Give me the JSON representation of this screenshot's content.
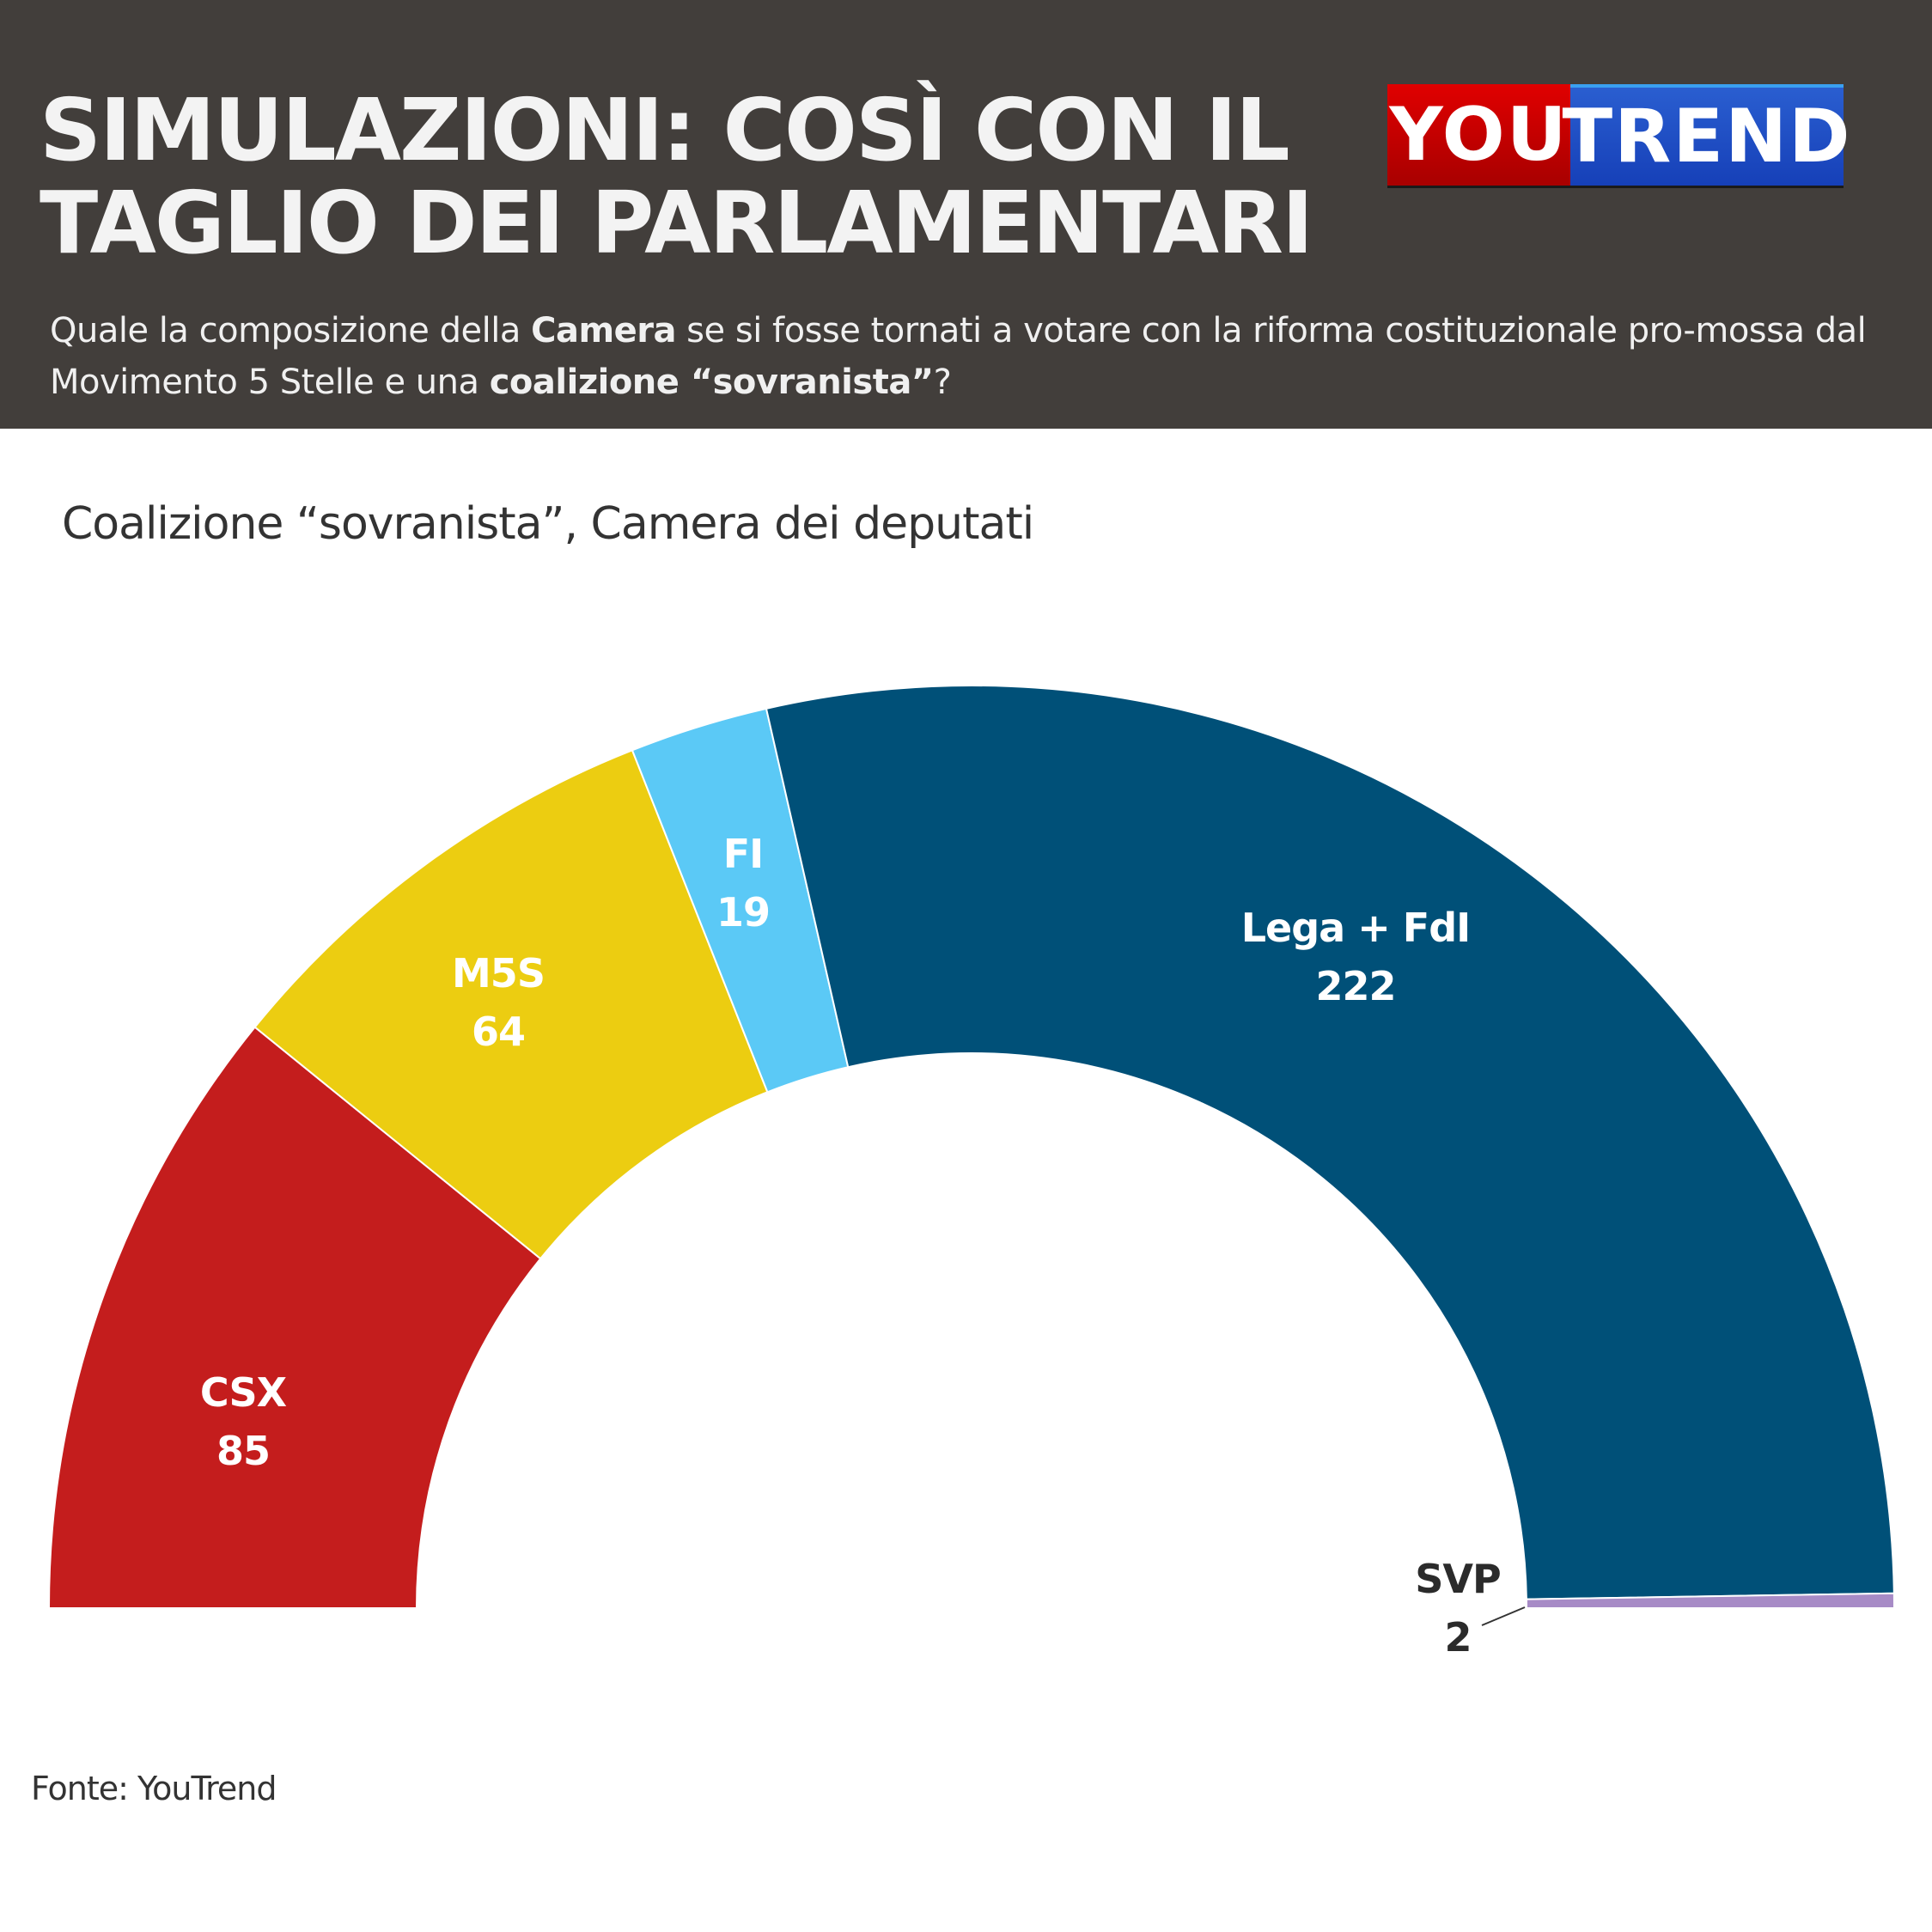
{
  "header": {
    "title_line1": "SIMULAZIONI: COSÌ CON IL",
    "title_line2": "TAGLIO DEI PARLAMENTARI",
    "subtitle_parts": [
      "Quale la composizione della ",
      "Camera",
      " se si fosse tornati a votare con la riforma costituzionale pro-mossa dal Movimento 5 Stelle e una ",
      "coalizione “sovranista”",
      "?"
    ],
    "logo": {
      "part1": "YOU",
      "part2": "TREND"
    }
  },
  "chart_data": {
    "type": "pie",
    "variant": "semicircle-donut (parliament)",
    "title": "Coalizione “sovranista”, Camera dei deputati",
    "categories": [
      "CSX",
      "M5S",
      "FI",
      "Lega + FdI",
      "SVP"
    ],
    "values": [
      85,
      64,
      19,
      222,
      2
    ],
    "colors": [
      "#c41d1d",
      "#eccd11",
      "#5bc9f6",
      "#005078",
      "#a78bc6"
    ],
    "label_colors": [
      "#ffffff",
      "#ffffff",
      "#ffffff",
      "#ffffff",
      "#2b2b2b"
    ]
  },
  "footer": {
    "source": "Fonte: YouTrend"
  }
}
